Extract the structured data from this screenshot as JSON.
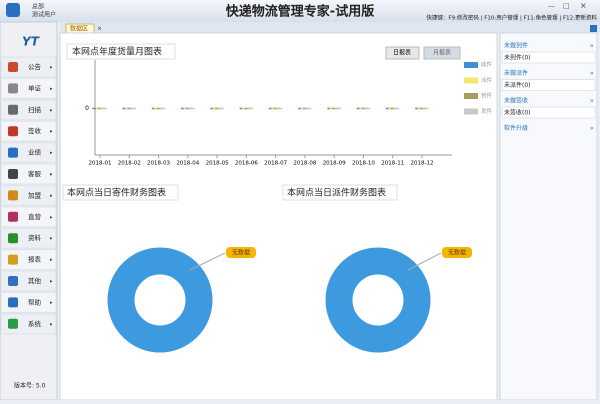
{
  "header": {
    "org": "总部",
    "user": "测试用户",
    "title": "快递物流管理专家-试用版",
    "shortcuts": "快捷键：F9:修改密码 | F10:用户管理 | F11:角色管理 | F12:更新资料"
  },
  "sidebar": {
    "menu": [
      "公告",
      "单证",
      "扫描",
      "签收",
      "业绩",
      "客服",
      "加盟",
      "直营",
      "资料",
      "报表",
      "其他",
      "帮助",
      "系统"
    ],
    "version": "版本号: 5.0"
  },
  "tab": "数据区",
  "monthly_chart": {
    "type": "line",
    "title": "本网点年度货量月图表",
    "buttons": [
      "日报表",
      "月报表"
    ],
    "categories": [
      "2018-01",
      "2018-02",
      "2018-03",
      "2018-04",
      "2018-05",
      "2018-06",
      "2018-07",
      "2018-08",
      "2018-09",
      "2018-10",
      "2018-11",
      "2018-12"
    ],
    "series": [
      {
        "name": "收件",
        "color": "#3d8fd6",
        "values": [
          0,
          0,
          0,
          0,
          0,
          0,
          0,
          0,
          0,
          0,
          0,
          0
        ]
      },
      {
        "name": "派件",
        "color": "#f4e66a",
        "values": [
          0,
          0,
          0,
          0,
          0,
          0,
          0,
          0,
          0,
          0,
          0,
          0
        ]
      },
      {
        "name": "到件",
        "color": "#a8a060",
        "values": [
          0,
          0,
          0,
          0,
          0,
          0,
          0,
          0,
          0,
          0,
          0,
          0
        ]
      },
      {
        "name": "发件",
        "color": "#c8c8c8",
        "values": [
          0,
          0,
          0,
          0,
          0,
          0,
          0,
          0,
          0,
          0,
          0,
          0
        ]
      }
    ],
    "ylim": [
      -1,
      1
    ],
    "yticks": [
      0
    ]
  },
  "send_chart": {
    "title": "本网点当日寄件财务图表",
    "label": "无数据"
  },
  "deliver_chart": {
    "title": "本网点当日派件财务图表",
    "label": "无数据"
  },
  "right_panel": [
    {
      "title": "未做到件",
      "value": "未到件(0)"
    },
    {
      "title": "未做派件",
      "value": "未派件(0)"
    },
    {
      "title": "未做签收",
      "value": "未签收(0)"
    },
    {
      "title": "软件升级"
    }
  ]
}
